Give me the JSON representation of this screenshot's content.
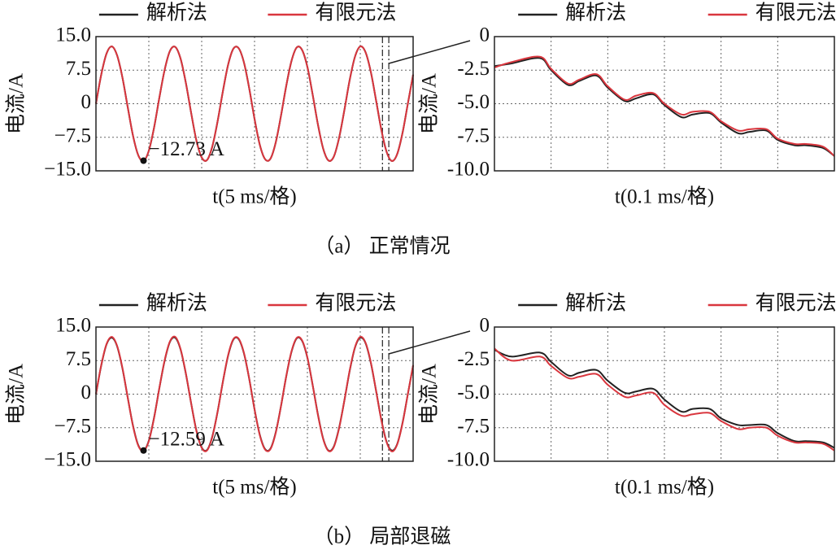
{
  "captions": [
    "（a） 正常情况",
    "（b） 局部退磁"
  ],
  "chart_data": [
    {
      "type": "line",
      "ylabel": "电流/A",
      "xlabel": "t(5 ms/格)",
      "xlim": [
        0,
        30
      ],
      "xticks": [
        5,
        10,
        15,
        20,
        25
      ],
      "ylim": [
        -15,
        15
      ],
      "yticks": [
        {
          "value": 15,
          "label": "15.0"
        },
        7.5,
        0,
        {
          "value": -7.5,
          "label": "−7.5"
        },
        {
          "value": -15,
          "label": "−15.0"
        }
      ],
      "grid": true,
      "zoom_window": [
        27.1,
        27.7
      ],
      "annotation": {
        "x": 4.5,
        "y": -12.73,
        "label": "−12.73 A"
      },
      "x": [
        0,
        0.5,
        1,
        1.5,
        2,
        2.5,
        3,
        3.5,
        4,
        4.5,
        5,
        5.5,
        6,
        6.5,
        7,
        7.5,
        8,
        8.5,
        9,
        9.5,
        10,
        10.5,
        11,
        11.5,
        12,
        12.5,
        13,
        13.5,
        14,
        14.5,
        15,
        15.5,
        16,
        16.5,
        17,
        17.5,
        18,
        18.5,
        19,
        19.5,
        20,
        20.5,
        21,
        21.5,
        22,
        22.5,
        23,
        23.5,
        24,
        24.5,
        25,
        25.5,
        26,
        26.5,
        27,
        27.5,
        28,
        28.5,
        29,
        29.5,
        30
      ],
      "series": [
        {
          "name": "解析法",
          "color": "#222222",
          "values": [
            0,
            6.5,
            11.2,
            12.8,
            10.8,
            5.9,
            -0.7,
            -7.1,
            -11.5,
            -12.8,
            -10.5,
            -5.3,
            1.4,
            7.6,
            11.8,
            12.7,
            10.1,
            4.7,
            -2.0,
            -8.2,
            -12.0,
            -12.6,
            -9.6,
            -4.0,
            2.7,
            8.7,
            12.3,
            12.4,
            9.2,
            3.4,
            -3.4,
            -9.2,
            -12.4,
            -12.3,
            -8.7,
            -2.7,
            4.0,
            9.6,
            12.6,
            12.0,
            8.2,
            2.0,
            -4.7,
            -10.1,
            -12.7,
            -11.8,
            -7.6,
            -1.4,
            5.3,
            10.5,
            12.8,
            11.5,
            7.1,
            0.7,
            -5.9,
            -10.8,
            -12.8,
            -11.2,
            -6.5,
            0,
            6.5
          ]
        },
        {
          "name": "有限元法",
          "color": "#d9363e",
          "values": [
            0,
            6.5,
            11.2,
            12.8,
            10.8,
            5.9,
            -0.7,
            -7.1,
            -11.5,
            -12.8,
            -10.5,
            -5.3,
            1.4,
            7.6,
            11.8,
            12.7,
            10.1,
            4.7,
            -2.0,
            -8.2,
            -12.0,
            -12.6,
            -9.6,
            -4.0,
            2.7,
            8.7,
            12.3,
            12.4,
            9.2,
            3.4,
            -3.4,
            -9.2,
            -12.4,
            -12.3,
            -8.7,
            -2.7,
            4.0,
            9.6,
            12.6,
            12.0,
            8.2,
            2.0,
            -4.7,
            -10.1,
            -12.7,
            -11.8,
            -7.6,
            -1.4,
            5.3,
            10.5,
            12.8,
            11.5,
            7.1,
            0.7,
            -5.9,
            -10.8,
            -12.8,
            -11.2,
            -6.5,
            0,
            6.5
          ]
        }
      ]
    },
    {
      "type": "line",
      "ylabel": "电流/A",
      "xlabel": "t(0.1 ms/格)",
      "xlim": [
        0,
        0.6
      ],
      "xticks": [
        0.1,
        0.2,
        0.3,
        0.4,
        0.5
      ],
      "ylim": [
        -10,
        0
      ],
      "yticks": [
        0,
        {
          "value": -2.5,
          "label": "-2.5"
        },
        {
          "value": -5,
          "label": "-5.0"
        },
        {
          "value": -7.5,
          "label": "-7.5"
        },
        {
          "value": -10,
          "label": "-10.0"
        }
      ],
      "grid": true,
      "x": [
        0,
        0.03,
        0.08,
        0.1,
        0.13,
        0.15,
        0.18,
        0.2,
        0.23,
        0.25,
        0.28,
        0.3,
        0.33,
        0.35,
        0.38,
        0.4,
        0.43,
        0.45,
        0.48,
        0.5,
        0.53,
        0.55,
        0.58,
        0.6
      ],
      "series": [
        {
          "name": "解析法",
          "color": "#222222",
          "values": [
            -2.2,
            -2.0,
            -1.6,
            -2.5,
            -3.6,
            -3.3,
            -2.9,
            -3.8,
            -4.8,
            -4.6,
            -4.3,
            -5.1,
            -6.0,
            -5.8,
            -5.7,
            -6.4,
            -7.2,
            -7.1,
            -7.0,
            -7.7,
            -8.1,
            -8.1,
            -8.3,
            -8.9
          ]
        },
        {
          "name": "有限元法",
          "color": "#d9363e",
          "values": [
            -2.3,
            -1.9,
            -1.5,
            -2.4,
            -3.5,
            -3.2,
            -2.8,
            -3.7,
            -4.7,
            -4.4,
            -4.2,
            -5.0,
            -5.8,
            -5.6,
            -5.6,
            -6.3,
            -7.0,
            -6.9,
            -6.9,
            -7.6,
            -8.0,
            -8.0,
            -8.2,
            -8.9
          ]
        }
      ]
    },
    {
      "type": "line",
      "ylabel": "电流/A",
      "xlabel": "t(5 ms/格)",
      "xlim": [
        0,
        30
      ],
      "xticks": [
        5,
        10,
        15,
        20,
        25
      ],
      "ylim": [
        -15,
        15
      ],
      "yticks": [
        {
          "value": 15,
          "label": "15.0"
        },
        7.5,
        0,
        {
          "value": -7.5,
          "label": "−7.5"
        },
        {
          "value": -15,
          "label": "−15.0"
        }
      ],
      "grid": true,
      "zoom_window": [
        27.1,
        27.7
      ],
      "annotation": {
        "x": 4.5,
        "y": -12.59,
        "label": "−12.59 A"
      },
      "x": [
        0,
        0.5,
        1,
        1.5,
        2,
        2.5,
        3,
        3.5,
        4,
        4.5,
        5,
        5.5,
        6,
        6.5,
        7,
        7.5,
        8,
        8.5,
        9,
        9.5,
        10,
        10.5,
        11,
        11.5,
        12,
        12.5,
        13,
        13.5,
        14,
        14.5,
        15,
        15.5,
        16,
        16.5,
        17,
        17.5,
        18,
        18.5,
        19,
        19.5,
        20,
        20.5,
        21,
        21.5,
        22,
        22.5,
        23,
        23.5,
        24,
        24.5,
        25,
        25.5,
        26,
        26.5,
        27,
        27.5,
        28,
        28.5,
        29,
        29.5,
        30
      ],
      "series": [
        {
          "name": "解析法",
          "color": "#222222",
          "values": [
            0,
            6.4,
            11.1,
            12.6,
            10.7,
            5.8,
            -0.7,
            -7.0,
            -11.4,
            -12.6,
            -10.4,
            -5.2,
            1.4,
            7.5,
            11.7,
            12.6,
            10.0,
            4.6,
            -2.0,
            -8.1,
            -11.9,
            -12.5,
            -9.5,
            -4.0,
            2.7,
            8.6,
            12.2,
            12.3,
            9.1,
            3.4,
            -3.4,
            -9.1,
            -12.3,
            -12.2,
            -8.6,
            -2.7,
            4.0,
            9.5,
            12.5,
            11.9,
            8.1,
            2.0,
            -4.6,
            -10.0,
            -12.6,
            -11.7,
            -7.5,
            -1.4,
            5.2,
            10.4,
            12.6,
            11.4,
            7.0,
            0.7,
            -5.8,
            -10.7,
            -12.6,
            -11.1,
            -6.4,
            0,
            6.4
          ]
        },
        {
          "name": "有限元法",
          "color": "#d9363e",
          "values": [
            0,
            6.5,
            11.2,
            12.8,
            10.8,
            5.9,
            -0.7,
            -7.1,
            -11.5,
            -12.7,
            -10.5,
            -5.3,
            1.4,
            7.6,
            11.8,
            12.8,
            10.1,
            4.7,
            -2.0,
            -8.2,
            -12.0,
            -12.6,
            -9.6,
            -4.0,
            2.7,
            8.7,
            12.3,
            12.4,
            9.2,
            3.4,
            -3.4,
            -9.2,
            -12.4,
            -12.3,
            -8.7,
            -2.7,
            4.0,
            9.6,
            12.6,
            12.0,
            8.2,
            2.0,
            -4.7,
            -10.1,
            -12.7,
            -11.8,
            -7.6,
            -1.4,
            5.3,
            10.5,
            12.8,
            11.5,
            7.1,
            0.7,
            -5.9,
            -10.8,
            -12.8,
            -11.2,
            -6.5,
            0,
            6.5
          ]
        }
      ]
    },
    {
      "type": "line",
      "ylabel": "电流/A",
      "xlabel": "t(0.1 ms/格)",
      "xlim": [
        0,
        0.6
      ],
      "xticks": [
        0.1,
        0.2,
        0.3,
        0.4,
        0.5
      ],
      "ylim": [
        -10,
        0
      ],
      "yticks": [
        0,
        {
          "value": -2.5,
          "label": "-2.5"
        },
        {
          "value": -5,
          "label": "-5.0"
        },
        {
          "value": -7.5,
          "label": "-7.5"
        },
        {
          "value": -10,
          "label": "-10.0"
        }
      ],
      "grid": true,
      "x": [
        0,
        0.03,
        0.08,
        0.1,
        0.13,
        0.15,
        0.18,
        0.2,
        0.23,
        0.25,
        0.28,
        0.3,
        0.33,
        0.35,
        0.38,
        0.4,
        0.43,
        0.45,
        0.48,
        0.5,
        0.53,
        0.55,
        0.58,
        0.6
      ],
      "series": [
        {
          "name": "解析法",
          "color": "#222222",
          "values": [
            -1.7,
            -2.2,
            -1.9,
            -2.6,
            -3.6,
            -3.4,
            -3.2,
            -4.0,
            -4.9,
            -4.8,
            -4.6,
            -5.4,
            -6.3,
            -6.1,
            -6.1,
            -6.8,
            -7.3,
            -7.3,
            -7.3,
            -7.9,
            -8.5,
            -8.5,
            -8.6,
            -9.0
          ]
        },
        {
          "name": "有限元法",
          "color": "#d9363e",
          "values": [
            -1.6,
            -2.5,
            -2.2,
            -2.9,
            -3.8,
            -3.7,
            -3.5,
            -4.3,
            -5.2,
            -5.1,
            -4.9,
            -5.8,
            -6.6,
            -6.5,
            -6.4,
            -7.0,
            -7.6,
            -7.5,
            -7.5,
            -8.1,
            -8.6,
            -8.6,
            -8.7,
            -9.2
          ]
        }
      ]
    }
  ]
}
